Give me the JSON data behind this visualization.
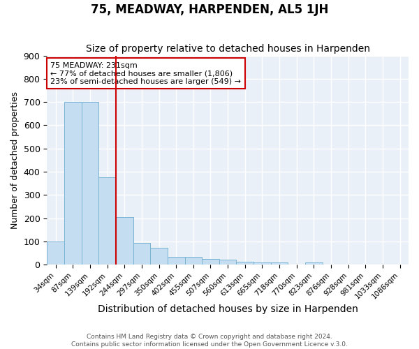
{
  "title": "75, MEADWAY, HARPENDEN, AL5 1JH",
  "subtitle": "Size of property relative to detached houses in Harpenden",
  "xlabel": "Distribution of detached houses by size in Harpenden",
  "ylabel": "Number of detached properties",
  "bar_labels": [
    "34sqm",
    "87sqm",
    "139sqm",
    "192sqm",
    "244sqm",
    "297sqm",
    "350sqm",
    "402sqm",
    "455sqm",
    "507sqm",
    "560sqm",
    "613sqm",
    "665sqm",
    "718sqm",
    "770sqm",
    "823sqm",
    "876sqm",
    "928sqm",
    "981sqm",
    "1033sqm",
    "1086sqm"
  ],
  "bar_values": [
    100,
    700,
    700,
    375,
    205,
    95,
    72,
    35,
    35,
    25,
    22,
    12,
    10,
    10,
    0,
    10,
    0,
    0,
    0,
    0,
    0
  ],
  "bar_color": "#c5ddf0",
  "bar_edgecolor": "#7ab3d4",
  "annotation_text_line1": "75 MEADWAY: 231sqm",
  "annotation_text_line2": "← 77% of detached houses are smaller (1,806)",
  "annotation_text_line3": "23% of semi-detached houses are larger (549) →",
  "annotation_box_color": "#cc0000",
  "vline_x": 3.5,
  "ylim": [
    0,
    900
  ],
  "yticks": [
    0,
    100,
    200,
    300,
    400,
    500,
    600,
    700,
    800,
    900
  ],
  "background_color": "#eaf0f8",
  "title_fontsize": 12,
  "subtitle_fontsize": 10,
  "xlabel_fontsize": 10,
  "ylabel_fontsize": 9,
  "footer_line1": "Contains HM Land Registry data © Crown copyright and database right 2024.",
  "footer_line2": "Contains public sector information licensed under the Open Government Licence v.3.0."
}
